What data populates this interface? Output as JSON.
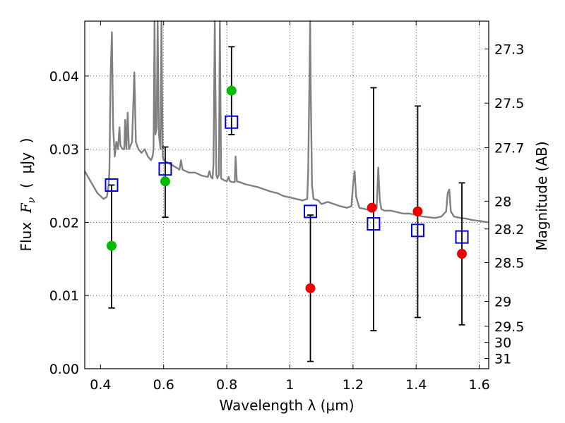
{
  "chart_data": {
    "type": "scatter",
    "xlabel": "Wavelength  λ (μm)",
    "ylabel_left": {
      "prefix": "Flux  ",
      "symbol": "F",
      "subscript": "ν",
      "suffix": "  (  μJy  )"
    },
    "ylabel_right": "Magnitude (AB)",
    "xlim": [
      0.35,
      1.63
    ],
    "ylim": [
      0.0,
      0.0475
    ],
    "grid": true,
    "x_ticks": [
      0.4,
      0.6,
      0.8,
      1.0,
      1.2,
      1.4,
      1.6
    ],
    "x_tick_labels": [
      "0.4",
      "0.6",
      "0.8",
      "1",
      "1.2",
      "1.4",
      "1.6"
    ],
    "y_ticks": [
      0.0,
      0.01,
      0.02,
      0.03,
      0.04
    ],
    "y_tick_labels": [
      "0.00",
      "0.01",
      "0.02",
      "0.03",
      "0.04"
    ],
    "right_ticks": [
      {
        "label": "27.3",
        "flux": 0.0437
      },
      {
        "label": "27.5",
        "flux": 0.0363
      },
      {
        "label": "27.7",
        "flux": 0.0302
      },
      {
        "label": "28",
        "flux": 0.0229
      },
      {
        "label": "28.2",
        "flux": 0.0191
      },
      {
        "label": "28.5",
        "flux": 0.0145
      },
      {
        "label": "29",
        "flux": 0.0092
      },
      {
        "label": "29.5",
        "flux": 0.0058
      },
      {
        "label": "30",
        "flux": 0.0036
      },
      {
        "label": "31",
        "flux": 0.0014
      }
    ],
    "model_sed": {
      "name": "model spectrum",
      "color": "#808080",
      "points": [
        [
          0.35,
          0.027
        ],
        [
          0.37,
          0.0255
        ],
        [
          0.39,
          0.024
        ],
        [
          0.41,
          0.0232
        ],
        [
          0.42,
          0.0235
        ],
        [
          0.425,
          0.0248
        ],
        [
          0.428,
          0.027
        ],
        [
          0.432,
          0.04
        ],
        [
          0.436,
          0.046
        ],
        [
          0.44,
          0.033
        ],
        [
          0.445,
          0.029
        ],
        [
          0.45,
          0.031
        ],
        [
          0.455,
          0.03
        ],
        [
          0.46,
          0.033
        ],
        [
          0.463,
          0.0305
        ],
        [
          0.47,
          0.03
        ],
        [
          0.475,
          0.03
        ],
        [
          0.478,
          0.034
        ],
        [
          0.482,
          0.03
        ],
        [
          0.486,
          0.035
        ],
        [
          0.49,
          0.03
        ],
        [
          0.5,
          0.031
        ],
        [
          0.507,
          0.0405
        ],
        [
          0.512,
          0.031
        ],
        [
          0.52,
          0.03
        ],
        [
          0.53,
          0.0295
        ],
        [
          0.54,
          0.03
        ],
        [
          0.55,
          0.029
        ],
        [
          0.56,
          0.0285
        ],
        [
          0.565,
          0.029
        ],
        [
          0.568,
          0.03
        ],
        [
          0.571,
          0.0475
        ],
        [
          0.574,
          0.032
        ],
        [
          0.578,
          0.033
        ],
        [
          0.581,
          0.0475
        ],
        [
          0.585,
          0.032
        ],
        [
          0.59,
          0.03
        ],
        [
          0.593,
          0.0475
        ],
        [
          0.597,
          0.029
        ],
        [
          0.6,
          0.0285
        ],
        [
          0.62,
          0.028
        ],
        [
          0.64,
          0.0275
        ],
        [
          0.65,
          0.0272
        ],
        [
          0.655,
          0.0285
        ],
        [
          0.66,
          0.0272
        ],
        [
          0.68,
          0.0268
        ],
        [
          0.7,
          0.0268
        ],
        [
          0.72,
          0.0264
        ],
        [
          0.74,
          0.0262
        ],
        [
          0.745,
          0.027
        ],
        [
          0.75,
          0.0262
        ],
        [
          0.755,
          0.026
        ],
        [
          0.758,
          0.028
        ],
        [
          0.762,
          0.0475
        ],
        [
          0.767,
          0.0265
        ],
        [
          0.77,
          0.026
        ],
        [
          0.775,
          0.0265
        ],
        [
          0.778,
          0.0475
        ],
        [
          0.782,
          0.026
        ],
        [
          0.79,
          0.0258
        ],
        [
          0.8,
          0.0256
        ],
        [
          0.806,
          0.0262
        ],
        [
          0.81,
          0.0256
        ],
        [
          0.82,
          0.0255
        ],
        [
          0.825,
          0.0255
        ],
        [
          0.828,
          0.029
        ],
        [
          0.832,
          0.0256
        ],
        [
          0.84,
          0.0255
        ],
        [
          0.86,
          0.0252
        ],
        [
          0.88,
          0.025
        ],
        [
          0.9,
          0.0248
        ],
        [
          0.92,
          0.0245
        ],
        [
          0.94,
          0.0242
        ],
        [
          0.96,
          0.024
        ],
        [
          0.98,
          0.0236
        ],
        [
          1.0,
          0.0234
        ],
        [
          1.02,
          0.0232
        ],
        [
          1.04,
          0.023
        ],
        [
          1.055,
          0.0232
        ],
        [
          1.058,
          0.027
        ],
        [
          1.062,
          0.04
        ],
        [
          1.064,
          0.0475
        ],
        [
          1.066,
          0.038
        ],
        [
          1.07,
          0.025
        ],
        [
          1.075,
          0.0232
        ],
        [
          1.09,
          0.023
        ],
        [
          1.1,
          0.0225
        ],
        [
          1.12,
          0.0228
        ],
        [
          1.14,
          0.0225
        ],
        [
          1.16,
          0.0222
        ],
        [
          1.18,
          0.022
        ],
        [
          1.195,
          0.0222
        ],
        [
          1.2,
          0.025
        ],
        [
          1.205,
          0.027
        ],
        [
          1.21,
          0.0235
        ],
        [
          1.22,
          0.022
        ],
        [
          1.24,
          0.0218
        ],
        [
          1.26,
          0.0216
        ],
        [
          1.275,
          0.022
        ],
        [
          1.28,
          0.0275
        ],
        [
          1.285,
          0.023
        ],
        [
          1.29,
          0.0218
        ],
        [
          1.3,
          0.0216
        ],
        [
          1.32,
          0.0216
        ],
        [
          1.34,
          0.0214
        ],
        [
          1.36,
          0.0212
        ],
        [
          1.38,
          0.0212
        ],
        [
          1.4,
          0.021
        ],
        [
          1.42,
          0.0208
        ],
        [
          1.44,
          0.0207
        ],
        [
          1.46,
          0.0206
        ],
        [
          1.48,
          0.0208
        ],
        [
          1.495,
          0.0215
        ],
        [
          1.5,
          0.024
        ],
        [
          1.505,
          0.0245
        ],
        [
          1.51,
          0.0215
        ],
        [
          1.52,
          0.0208
        ],
        [
          1.54,
          0.0206
        ],
        [
          1.56,
          0.0205
        ],
        [
          1.58,
          0.0203
        ],
        [
          1.6,
          0.0202
        ],
        [
          1.63,
          0.02
        ]
      ]
    },
    "series": [
      {
        "name": "green points",
        "marker": "circle",
        "color": "#00bb00",
        "points": [
          {
            "x": 0.435,
            "y": 0.0168
          },
          {
            "x": 0.605,
            "y": 0.0256
          },
          {
            "x": 0.815,
            "y": 0.038
          }
        ]
      },
      {
        "name": "red points",
        "marker": "circle",
        "color": "#ee0000",
        "points": [
          {
            "x": 1.065,
            "y": 0.011
          },
          {
            "x": 1.26,
            "y": 0.022
          },
          {
            "x": 1.405,
            "y": 0.0215
          },
          {
            "x": 1.545,
            "y": 0.0157
          }
        ]
      },
      {
        "name": "model bandpass",
        "marker": "open-square",
        "color": "#0000dd",
        "points": [
          {
            "x": 0.435,
            "y": 0.0251
          },
          {
            "x": 0.605,
            "y": 0.0273
          },
          {
            "x": 0.815,
            "y": 0.0337
          },
          {
            "x": 1.065,
            "y": 0.0215
          },
          {
            "x": 1.265,
            "y": 0.0198
          },
          {
            "x": 1.405,
            "y": 0.0189
          },
          {
            "x": 1.545,
            "y": 0.018
          }
        ]
      }
    ],
    "error_bars": [
      {
        "x": 0.435,
        "low": 0.0083,
        "high": 0.0251
      },
      {
        "x": 0.605,
        "low": 0.0207,
        "high": 0.0303
      },
      {
        "x": 0.815,
        "low": 0.032,
        "high": 0.044
      },
      {
        "x": 1.065,
        "low": 0.001,
        "high": 0.021
      },
      {
        "x": 1.265,
        "low": 0.0052,
        "high": 0.0384
      },
      {
        "x": 1.405,
        "low": 0.007,
        "high": 0.0359
      },
      {
        "x": 1.545,
        "low": 0.006,
        "high": 0.0254
      }
    ]
  }
}
